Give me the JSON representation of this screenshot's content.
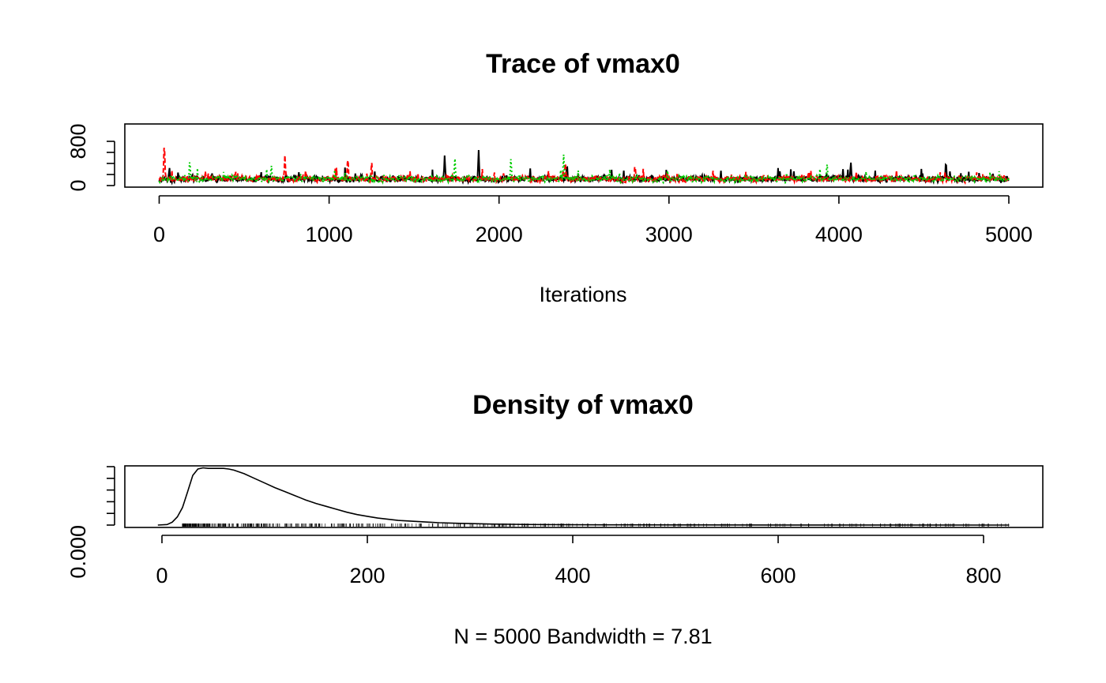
{
  "chart_data": [
    {
      "type": "line",
      "title": "Trace of vmax0",
      "xlabel": "Iterations",
      "ylabel": "",
      "xlim": [
        0,
        5000
      ],
      "ylim": [
        0,
        800
      ],
      "x_ticks": [
        0,
        1000,
        2000,
        3000,
        4000,
        5000
      ],
      "x_tick_labels": [
        "0",
        "1000",
        "2000",
        "3000",
        "4000",
        "5000"
      ],
      "y_ticks": [
        0,
        200,
        400,
        600,
        800
      ],
      "y_tick_labels": [
        "0",
        "",
        "",
        "",
        "800"
      ],
      "series": [
        {
          "color": "#000000",
          "linestyle": "solid",
          "typical_range": [
            0,
            300
          ],
          "peaks": [
            {
              "x": 60,
              "y": 350
            },
            {
              "x": 1680,
              "y": 560
            },
            {
              "x": 1880,
              "y": 650
            },
            {
              "x": 2400,
              "y": 420
            },
            {
              "x": 4070,
              "y": 460
            },
            {
              "x": 4630,
              "y": 480
            }
          ]
        },
        {
          "color": "#ff0000",
          "linestyle": "dashed",
          "typical_range": [
            0,
            300
          ],
          "peaks": [
            {
              "x": 30,
              "y": 830
            },
            {
              "x": 740,
              "y": 560
            },
            {
              "x": 1110,
              "y": 560
            },
            {
              "x": 1250,
              "y": 460
            },
            {
              "x": 2390,
              "y": 450
            },
            {
              "x": 2800,
              "y": 420
            }
          ]
        },
        {
          "color": "#00cd00",
          "linestyle": "dotted",
          "typical_range": [
            0,
            300
          ],
          "peaks": [
            {
              "x": 180,
              "y": 500
            },
            {
              "x": 660,
              "y": 420
            },
            {
              "x": 1740,
              "y": 520
            },
            {
              "x": 2070,
              "y": 520
            },
            {
              "x": 2380,
              "y": 580
            },
            {
              "x": 3930,
              "y": 460
            }
          ]
        }
      ]
    },
    {
      "type": "line",
      "title": "Density of vmax0",
      "xlabel": "N = 5000   Bandwidth = 7.81",
      "ylabel": "",
      "xlim": [
        0,
        800
      ],
      "ylim": [
        0,
        0.01
      ],
      "x_ticks": [
        0,
        200,
        400,
        600,
        800
      ],
      "x_tick_labels": [
        "0",
        "200",
        "400",
        "600",
        "800"
      ],
      "y_ticks": [
        0,
        0.002,
        0.004,
        0.006,
        0.008,
        0.01
      ],
      "y_tick_labels": [
        "0.000",
        "",
        "",
        "",
        "",
        ""
      ],
      "x": [
        -4,
        5,
        10,
        15,
        20,
        25,
        30,
        35,
        40,
        45,
        50,
        55,
        60,
        65,
        70,
        80,
        90,
        100,
        110,
        120,
        130,
        140,
        150,
        160,
        170,
        180,
        190,
        200,
        210,
        220,
        230,
        240,
        250,
        260,
        270,
        280,
        290,
        300,
        320,
        340,
        360,
        380,
        400,
        450,
        500,
        600,
        700,
        825
      ],
      "y": [
        0.0,
        0.0001,
        0.0005,
        0.0014,
        0.003,
        0.0057,
        0.0085,
        0.0096,
        0.0098,
        0.0097,
        0.0097,
        0.0097,
        0.0097,
        0.0096,
        0.0094,
        0.0088,
        0.008,
        0.0072,
        0.0064,
        0.0057,
        0.005,
        0.0043,
        0.0037,
        0.0032,
        0.0027,
        0.0022,
        0.0018,
        0.0015,
        0.0012,
        0.001,
        0.0008,
        0.0007,
        0.0006,
        0.0005,
        0.0004,
        0.00035,
        0.0003,
        0.00025,
        0.00018,
        0.00013,
        0.0001,
        8e-05,
        6e-05,
        4e-05,
        3e-05,
        2e-05,
        1e-05,
        0.0
      ],
      "rug_range": [
        20,
        825
      ]
    }
  ]
}
